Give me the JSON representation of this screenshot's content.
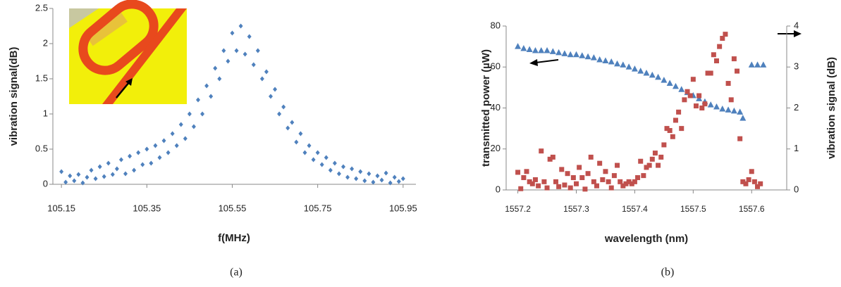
{
  "chart_data": [
    {
      "type": "scatter",
      "ylabel": "vibration signal(dB)",
      "xlabel": "f(MHz)",
      "caption": "(a)",
      "xlim": [
        105.13,
        105.98
      ],
      "xticks": [
        105.15,
        105.35,
        105.55,
        105.75,
        105.95
      ],
      "ylim": [
        0,
        2.5
      ],
      "yticks": [
        0,
        0.5,
        1,
        1.5,
        2,
        2.5
      ],
      "series": [
        {
          "marker": "diamond",
          "color": "#4f81bd",
          "x": [
            105.15,
            105.16,
            105.17,
            105.18,
            105.19,
            105.2,
            105.21,
            105.22,
            105.23,
            105.24,
            105.25,
            105.26,
            105.27,
            105.28,
            105.29,
            105.3,
            105.31,
            105.32,
            105.33,
            105.34,
            105.35,
            105.36,
            105.37,
            105.38,
            105.39,
            105.4,
            105.41,
            105.42,
            105.43,
            105.44,
            105.45,
            105.46,
            105.47,
            105.48,
            105.49,
            105.5,
            105.51,
            105.52,
            105.53,
            105.54,
            105.55,
            105.56,
            105.57,
            105.58,
            105.59,
            105.6,
            105.61,
            105.62,
            105.63,
            105.64,
            105.65,
            105.66,
            105.67,
            105.68,
            105.69,
            105.7,
            105.71,
            105.72,
            105.73,
            105.74,
            105.75,
            105.76,
            105.77,
            105.78,
            105.79,
            105.8,
            105.81,
            105.82,
            105.83,
            105.84,
            105.85,
            105.86,
            105.87,
            105.88,
            105.89,
            105.9,
            105.91,
            105.92,
            105.93,
            105.94,
            105.95
          ],
          "values": [
            0.18,
            0.03,
            0.12,
            0.05,
            0.14,
            0.02,
            0.1,
            0.2,
            0.08,
            0.25,
            0.11,
            0.3,
            0.14,
            0.22,
            0.35,
            0.15,
            0.4,
            0.2,
            0.45,
            0.28,
            0.5,
            0.3,
            0.55,
            0.38,
            0.62,
            0.45,
            0.72,
            0.55,
            0.85,
            0.65,
            1.0,
            0.82,
            1.2,
            1.0,
            1.4,
            1.25,
            1.65,
            1.5,
            1.9,
            1.75,
            2.15,
            1.9,
            2.25,
            1.85,
            2.1,
            1.7,
            1.9,
            1.5,
            1.6,
            1.25,
            1.35,
            1.0,
            1.1,
            0.8,
            0.88,
            0.6,
            0.72,
            0.45,
            0.55,
            0.35,
            0.45,
            0.28,
            0.38,
            0.2,
            0.3,
            0.15,
            0.25,
            0.1,
            0.22,
            0.08,
            0.18,
            0.05,
            0.15,
            0.03,
            0.12,
            0.06,
            0.16,
            0.02,
            0.1,
            0.04,
            0.08
          ]
        }
      ]
    },
    {
      "type": "scatter",
      "ylabel": "transmitted power (µW)",
      "y2label": "vibration signal (dB)",
      "xlabel": "wavelength (nm)",
      "caption": "(b)",
      "xlim": [
        1557.18,
        1557.66
      ],
      "xticks": [
        1557.2,
        1557.3,
        1557.4,
        1557.5,
        1557.6
      ],
      "ylim": [
        0,
        80
      ],
      "yticks": [
        0,
        20,
        40,
        60,
        80
      ],
      "y2lim": [
        0,
        4
      ],
      "y2ticks": [
        0,
        1,
        2,
        3,
        4
      ],
      "series": [
        {
          "marker": "triangle",
          "color": "#4f81bd",
          "x": [
            1557.2,
            1557.21,
            1557.22,
            1557.23,
            1557.24,
            1557.25,
            1557.26,
            1557.27,
            1557.28,
            1557.29,
            1557.3,
            1557.31,
            1557.32,
            1557.33,
            1557.34,
            1557.35,
            1557.36,
            1557.37,
            1557.38,
            1557.39,
            1557.4,
            1557.41,
            1557.42,
            1557.43,
            1557.44,
            1557.45,
            1557.46,
            1557.47,
            1557.48,
            1557.49,
            1557.5,
            1557.51,
            1557.52,
            1557.53,
            1557.54,
            1557.55,
            1557.56,
            1557.57,
            1557.58,
            1557.585,
            1557.6,
            1557.61,
            1557.62
          ],
          "values": [
            70,
            69,
            68.5,
            68,
            68,
            68,
            67.5,
            67,
            66.5,
            66,
            66,
            65.5,
            65,
            64.5,
            63.5,
            63,
            62.5,
            61.5,
            61,
            60,
            59,
            58,
            57,
            56,
            55,
            53.5,
            52,
            50.5,
            49,
            47.5,
            46,
            44.5,
            43,
            41.5,
            40.5,
            39.5,
            39,
            38.5,
            38,
            35,
            61,
            61,
            61
          ]
        },
        {
          "marker": "square",
          "color": "#c0504d",
          "axis": "y2",
          "x": [
            1557.2,
            1557.205,
            1557.21,
            1557.215,
            1557.22,
            1557.225,
            1557.23,
            1557.235,
            1557.24,
            1557.245,
            1557.25,
            1557.255,
            1557.26,
            1557.265,
            1557.27,
            1557.275,
            1557.28,
            1557.285,
            1557.29,
            1557.295,
            1557.3,
            1557.305,
            1557.31,
            1557.315,
            1557.32,
            1557.325,
            1557.33,
            1557.335,
            1557.34,
            1557.345,
            1557.35,
            1557.355,
            1557.36,
            1557.365,
            1557.37,
            1557.375,
            1557.38,
            1557.385,
            1557.39,
            1557.395,
            1557.4,
            1557.405,
            1557.41,
            1557.415,
            1557.42,
            1557.425,
            1557.43,
            1557.435,
            1557.44,
            1557.445,
            1557.45,
            1557.455,
            1557.46,
            1557.465,
            1557.47,
            1557.475,
            1557.48,
            1557.485,
            1557.49,
            1557.495,
            1557.5,
            1557.505,
            1557.51,
            1557.515,
            1557.52,
            1557.525,
            1557.53,
            1557.535,
            1557.54,
            1557.545,
            1557.55,
            1557.555,
            1557.56,
            1557.565,
            1557.57,
            1557.575,
            1557.58,
            1557.585,
            1557.59,
            1557.595,
            1557.6,
            1557.605,
            1557.61,
            1557.615
          ],
          "values": [
            0.43,
            0.03,
            0.3,
            0.45,
            0.2,
            0.15,
            0.25,
            0.1,
            0.95,
            0.2,
            0.05,
            0.75,
            0.8,
            0.2,
            0.08,
            0.5,
            0.12,
            0.4,
            0.05,
            0.3,
            0.15,
            0.55,
            0.3,
            0.02,
            0.4,
            0.8,
            0.2,
            0.1,
            0.65,
            0.25,
            0.45,
            0.2,
            0.05,
            0.35,
            0.6,
            0.2,
            0.1,
            0.15,
            0.2,
            0.15,
            0.2,
            0.3,
            0.7,
            0.35,
            0.55,
            0.6,
            0.75,
            0.9,
            0.6,
            0.8,
            1.1,
            1.5,
            1.45,
            1.3,
            1.7,
            1.9,
            1.5,
            2.2,
            2.4,
            2.3,
            2.7,
            2.05,
            2.3,
            2.0,
            2.1,
            2.85,
            2.85,
            3.3,
            3.15,
            3.5,
            3.7,
            3.8,
            2.6,
            2.2,
            3.2,
            2.9,
            1.25,
            0.2,
            0.15,
            0.25,
            0.45,
            0.2,
            0.08,
            0.15
          ]
        }
      ]
    }
  ]
}
